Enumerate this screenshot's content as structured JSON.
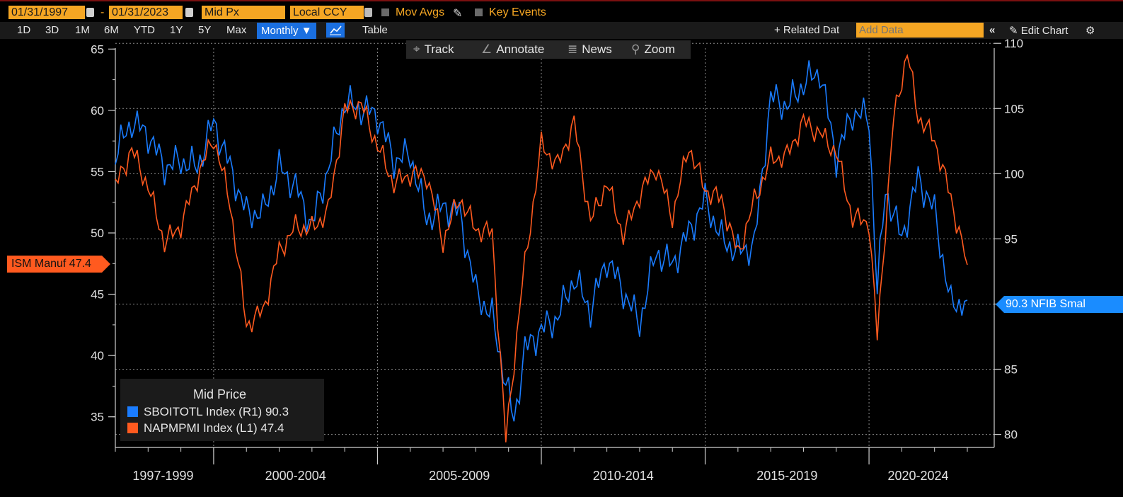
{
  "toolbar": {
    "start_date": "01/31/1997",
    "end_date": "01/31/2023",
    "date_sep": "-",
    "price_field": "Mid Px",
    "currency": "Local CCY",
    "mov_avgs": "Mov Avgs",
    "key_events": "Key Events",
    "ranges": [
      "1D",
      "3D",
      "1M",
      "6M",
      "YTD",
      "1Y",
      "5Y",
      "Max"
    ],
    "frequency": "Monthly ▼",
    "table": "Table",
    "related": "+ Related Dat",
    "add_data_placeholder": "Add Data",
    "edit_chart": "Edit Chart"
  },
  "chart_tools": {
    "track": "Track",
    "annotate": "Annotate",
    "news": "News",
    "zoom": "Zoom"
  },
  "legend": {
    "title": "Mid Price",
    "rows": [
      {
        "text": "SBOITOTL Index  (R1)  90.3",
        "color": "#1a7cff"
      },
      {
        "text": "NAPMPMI Index  (L1)  47.4",
        "color": "#ff5a1f"
      }
    ]
  },
  "tags": {
    "left": "ISM Manuf 47.4",
    "right": "90.3 NFIB Smal"
  },
  "colors": {
    "ism": "#ff5a1f",
    "nfib": "#1a7cff",
    "accent": "#f5a623"
  },
  "chart_data": {
    "type": "line",
    "x_range": [
      "1997-01",
      "2023-01"
    ],
    "x_sections": [
      "1997-1999",
      "2000-2004",
      "2005-2009",
      "2010-2014",
      "2015-2019",
      "2020-2024"
    ],
    "left_axis": {
      "ticks": [
        35,
        40,
        45,
        50,
        55,
        60,
        65
      ],
      "ylim": [
        32.5,
        66
      ]
    },
    "right_axis": {
      "ticks": [
        80,
        85,
        90,
        95,
        100,
        105,
        110
      ],
      "ylim": [
        79,
        110.5
      ]
    },
    "grid": true,
    "legend_position": "bottom-left",
    "series": [
      {
        "name": "NAPMPMI Index",
        "axis": "left",
        "color": "#ff5a1f",
        "points": [
          [
            "1997-01",
            53.8
          ],
          [
            "1997-07",
            56.8
          ],
          [
            "1998-01",
            53.8
          ],
          [
            "1998-07",
            49.2
          ],
          [
            "1999-01",
            50.6
          ],
          [
            "1999-07",
            54.5
          ],
          [
            "2000-01",
            57.8
          ],
          [
            "2000-07",
            52.5
          ],
          [
            "2001-01",
            42.5
          ],
          [
            "2001-07",
            43.6
          ],
          [
            "2002-01",
            48.5
          ],
          [
            "2002-07",
            50.5
          ],
          [
            "2003-01",
            50.3
          ],
          [
            "2003-07",
            51.8
          ],
          [
            "2004-01",
            60.0
          ],
          [
            "2004-07",
            60.5
          ],
          [
            "2005-01",
            57.1
          ],
          [
            "2005-07",
            54.0
          ],
          [
            "2006-01",
            54.8
          ],
          [
            "2006-07",
            54.7
          ],
          [
            "2007-01",
            49.3
          ],
          [
            "2007-07",
            52.9
          ],
          [
            "2008-01",
            50.3
          ],
          [
            "2008-07",
            50.0
          ],
          [
            "2008-12",
            33.1
          ],
          [
            "2009-06",
            45.8
          ],
          [
            "2010-01",
            57.2
          ],
          [
            "2010-07",
            55.5
          ],
          [
            "2011-01",
            59.0
          ],
          [
            "2011-07",
            50.9
          ],
          [
            "2012-01",
            54.1
          ],
          [
            "2012-07",
            49.8
          ],
          [
            "2013-01",
            53.1
          ],
          [
            "2013-07",
            55.4
          ],
          [
            "2014-01",
            51.3
          ],
          [
            "2014-07",
            57.1
          ],
          [
            "2015-01",
            53.5
          ],
          [
            "2015-07",
            52.7
          ],
          [
            "2016-01",
            48.2
          ],
          [
            "2016-07",
            52.6
          ],
          [
            "2017-01",
            56.0
          ],
          [
            "2017-07",
            56.3
          ],
          [
            "2018-01",
            59.1
          ],
          [
            "2018-07",
            58.1
          ],
          [
            "2019-01",
            56.6
          ],
          [
            "2019-07",
            51.2
          ],
          [
            "2020-01",
            50.9
          ],
          [
            "2020-04",
            41.5
          ],
          [
            "2020-10",
            59.3
          ],
          [
            "2021-03",
            64.7
          ],
          [
            "2021-07",
            59.5
          ],
          [
            "2022-01",
            57.6
          ],
          [
            "2022-07",
            52.8
          ],
          [
            "2023-01",
            47.4
          ]
        ]
      },
      {
        "name": "SBOITOTL Index",
        "axis": "right",
        "color": "#1a7cff",
        "points": [
          [
            "1997-01",
            101.5
          ],
          [
            "1997-07",
            104.0
          ],
          [
            "1998-01",
            103.0
          ],
          [
            "1998-07",
            100.5
          ],
          [
            "1999-01",
            101.0
          ],
          [
            "1999-07",
            100.5
          ],
          [
            "2000-01",
            104.0
          ],
          [
            "2000-07",
            100.5
          ],
          [
            "2001-01",
            97.0
          ],
          [
            "2001-07",
            97.0
          ],
          [
            "2002-01",
            100.5
          ],
          [
            "2002-07",
            99.0
          ],
          [
            "2003-01",
            96.0
          ],
          [
            "2003-07",
            100.5
          ],
          [
            "2004-01",
            105.5
          ],
          [
            "2004-07",
            105.0
          ],
          [
            "2005-01",
            104.5
          ],
          [
            "2005-07",
            101.0
          ],
          [
            "2006-01",
            101.5
          ],
          [
            "2006-07",
            96.5
          ],
          [
            "2007-01",
            97.5
          ],
          [
            "2007-07",
            97.0
          ],
          [
            "2008-01",
            91.0
          ],
          [
            "2008-07",
            89.0
          ],
          [
            "2009-03",
            81.0
          ],
          [
            "2009-07",
            86.5
          ],
          [
            "2010-01",
            88.0
          ],
          [
            "2010-07",
            89.0
          ],
          [
            "2011-01",
            92.0
          ],
          [
            "2011-07",
            89.5
          ],
          [
            "2012-01",
            93.5
          ],
          [
            "2012-07",
            91.0
          ],
          [
            "2013-01",
            88.5
          ],
          [
            "2013-07",
            94.0
          ],
          [
            "2014-01",
            93.0
          ],
          [
            "2014-07",
            95.5
          ],
          [
            "2015-01",
            98.0
          ],
          [
            "2015-07",
            95.0
          ],
          [
            "2016-01",
            94.0
          ],
          [
            "2016-07",
            94.5
          ],
          [
            "2017-01",
            105.9
          ],
          [
            "2017-07",
            105.2
          ],
          [
            "2018-01",
            106.9
          ],
          [
            "2018-07",
            107.9
          ],
          [
            "2019-01",
            101.2
          ],
          [
            "2019-07",
            104.7
          ],
          [
            "2020-01",
            104.3
          ],
          [
            "2020-04",
            90.9
          ],
          [
            "2020-07",
            98.8
          ],
          [
            "2021-01",
            95.0
          ],
          [
            "2021-07",
            99.7
          ],
          [
            "2022-01",
            97.1
          ],
          [
            "2022-07",
            89.9
          ],
          [
            "2023-01",
            90.3
          ]
        ]
      }
    ]
  }
}
